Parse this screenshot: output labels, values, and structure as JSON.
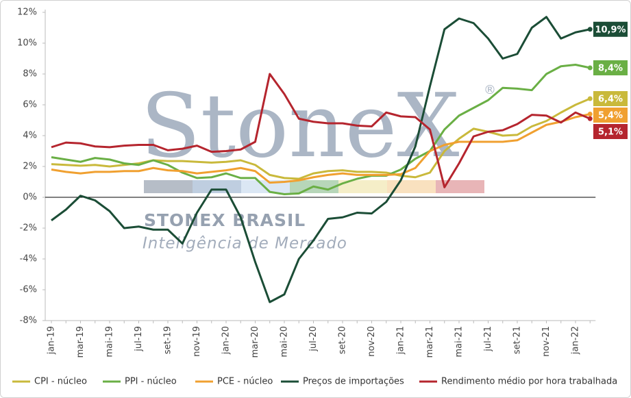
{
  "chart_data": {
    "type": "line",
    "watermark": {
      "brand": "StoneX",
      "mark": "®",
      "name": "STONEX BRASIL",
      "tagline": "Inteligência de Mercado"
    },
    "categories": [
      "jan-19",
      null,
      "mar-19",
      null,
      "mai-19",
      null,
      "jul-19",
      null,
      "set-19",
      null,
      "nov-19",
      null,
      "jan-20",
      null,
      "mar-20",
      null,
      "mai-20",
      null,
      "jul-20",
      null,
      "set-20",
      null,
      "nov-20",
      null,
      "jan-21",
      null,
      "mar-21",
      null,
      "mai-21",
      null,
      "jul-21",
      null,
      "set-21",
      null,
      "nov-21",
      null,
      "jan-22",
      null
    ],
    "ylim": [
      -8,
      12
    ],
    "yticks": [
      {
        "value": -8,
        "label": "-8%"
      },
      {
        "value": -6,
        "label": "-6%"
      },
      {
        "value": -4,
        "label": "-4%"
      },
      {
        "value": -2,
        "label": "-2%"
      },
      {
        "value": 0,
        "label": "0%"
      },
      {
        "value": 2,
        "label": "2%"
      },
      {
        "value": 4,
        "label": "4%"
      },
      {
        "value": 6,
        "label": "6%"
      },
      {
        "value": 8,
        "label": "8%"
      },
      {
        "value": 10,
        "label": "10%"
      },
      {
        "value": 12,
        "label": "12%"
      }
    ],
    "grid": false,
    "legend": "bottom",
    "series": [
      {
        "name": "CPI - núcleo",
        "color": "#c9b93b",
        "values": [
          2.15,
          2.1,
          2.05,
          2.1,
          2.0,
          2.1,
          2.2,
          2.4,
          2.35,
          2.35,
          2.3,
          2.25,
          2.3,
          2.4,
          2.1,
          1.45,
          1.25,
          1.2,
          1.55,
          1.7,
          1.75,
          1.65,
          1.65,
          1.6,
          1.4,
          1.3,
          1.6,
          3.0,
          3.8,
          4.45,
          4.25,
          4.0,
          4.05,
          4.6,
          4.95,
          5.5,
          6.0,
          6.4
        ],
        "value_labels": [
          null,
          null,
          null,
          null,
          null,
          null,
          null,
          null,
          null,
          null,
          null,
          null,
          null,
          null,
          null,
          null,
          null,
          null,
          null,
          null,
          null,
          null,
          null,
          null,
          null,
          null,
          null,
          null,
          null,
          null,
          null,
          null,
          null,
          null,
          null,
          null,
          null,
          "6,4%"
        ]
      },
      {
        "name": "PPI - núcleo",
        "color": "#6aaf45",
        "values": [
          2.6,
          2.45,
          2.3,
          2.55,
          2.45,
          2.2,
          2.1,
          2.4,
          2.1,
          1.6,
          1.25,
          1.3,
          1.55,
          1.25,
          1.25,
          0.35,
          0.2,
          0.25,
          0.7,
          0.5,
          0.9,
          1.2,
          1.4,
          1.4,
          1.8,
          2.5,
          3.0,
          4.4,
          5.3,
          5.8,
          6.3,
          7.1,
          7.05,
          6.95,
          8.0,
          8.5,
          8.6,
          8.4
        ],
        "value_labels": [
          null,
          null,
          null,
          null,
          null,
          null,
          null,
          null,
          null,
          null,
          null,
          null,
          null,
          null,
          null,
          null,
          null,
          null,
          null,
          null,
          null,
          null,
          null,
          null,
          null,
          null,
          null,
          null,
          null,
          null,
          null,
          null,
          null,
          null,
          null,
          null,
          null,
          "8,4%"
        ]
      },
      {
        "name": "PCE - núcleo",
        "color": "#f0a030",
        "values": [
          1.8,
          1.65,
          1.55,
          1.65,
          1.65,
          1.7,
          1.7,
          1.9,
          1.75,
          1.7,
          1.55,
          1.65,
          1.75,
          1.9,
          1.7,
          0.95,
          1.0,
          1.1,
          1.3,
          1.45,
          1.55,
          1.45,
          1.45,
          1.45,
          1.5,
          1.9,
          3.0,
          3.4,
          3.6,
          3.6,
          3.6,
          3.6,
          3.7,
          4.2,
          4.7,
          4.9,
          5.2,
          5.4
        ],
        "value_labels": [
          null,
          null,
          null,
          null,
          null,
          null,
          null,
          null,
          null,
          null,
          null,
          null,
          null,
          null,
          null,
          null,
          null,
          null,
          null,
          null,
          null,
          null,
          null,
          null,
          null,
          null,
          null,
          null,
          null,
          null,
          null,
          null,
          null,
          null,
          null,
          null,
          null,
          "5,4%"
        ]
      },
      {
        "name": "Preços de importações",
        "color": "#1b4d36",
        "values": [
          -1.5,
          -0.8,
          0.1,
          -0.2,
          -0.9,
          -2.0,
          -1.9,
          -2.1,
          -2.1,
          -3.0,
          -1.0,
          0.5,
          0.5,
          -1.3,
          -4.2,
          -6.8,
          -6.3,
          -4.0,
          -2.8,
          -1.4,
          -1.3,
          -1.0,
          -1.05,
          -0.3,
          1.1,
          3.3,
          7.2,
          10.9,
          11.6,
          11.3,
          10.3,
          9.0,
          9.3,
          11.0,
          11.7,
          10.3,
          10.7,
          10.9
        ],
        "value_labels": [
          null,
          null,
          null,
          null,
          null,
          null,
          null,
          null,
          null,
          null,
          null,
          null,
          null,
          null,
          null,
          null,
          null,
          null,
          null,
          null,
          null,
          null,
          null,
          null,
          null,
          null,
          null,
          null,
          null,
          null,
          null,
          null,
          null,
          null,
          null,
          null,
          null,
          "10,9%"
        ]
      },
      {
        "name": "Rendimento médio por hora trabalhada",
        "color": "#b5252e",
        "values": [
          3.25,
          3.55,
          3.5,
          3.3,
          3.25,
          3.35,
          3.4,
          3.4,
          3.05,
          3.15,
          3.35,
          2.95,
          3.0,
          3.1,
          3.6,
          8.0,
          6.7,
          5.1,
          4.9,
          4.8,
          4.8,
          4.65,
          4.6,
          5.5,
          5.25,
          5.2,
          4.4,
          0.65,
          2.2,
          3.95,
          4.25,
          4.35,
          4.75,
          5.35,
          5.3,
          4.85,
          5.5,
          5.1
        ],
        "value_labels": [
          null,
          null,
          null,
          null,
          null,
          null,
          null,
          null,
          null,
          null,
          null,
          null,
          null,
          null,
          null,
          null,
          null,
          null,
          null,
          null,
          null,
          null,
          null,
          null,
          null,
          null,
          null,
          null,
          null,
          null,
          null,
          null,
          null,
          null,
          null,
          null,
          null,
          "5,1%"
        ]
      }
    ]
  }
}
